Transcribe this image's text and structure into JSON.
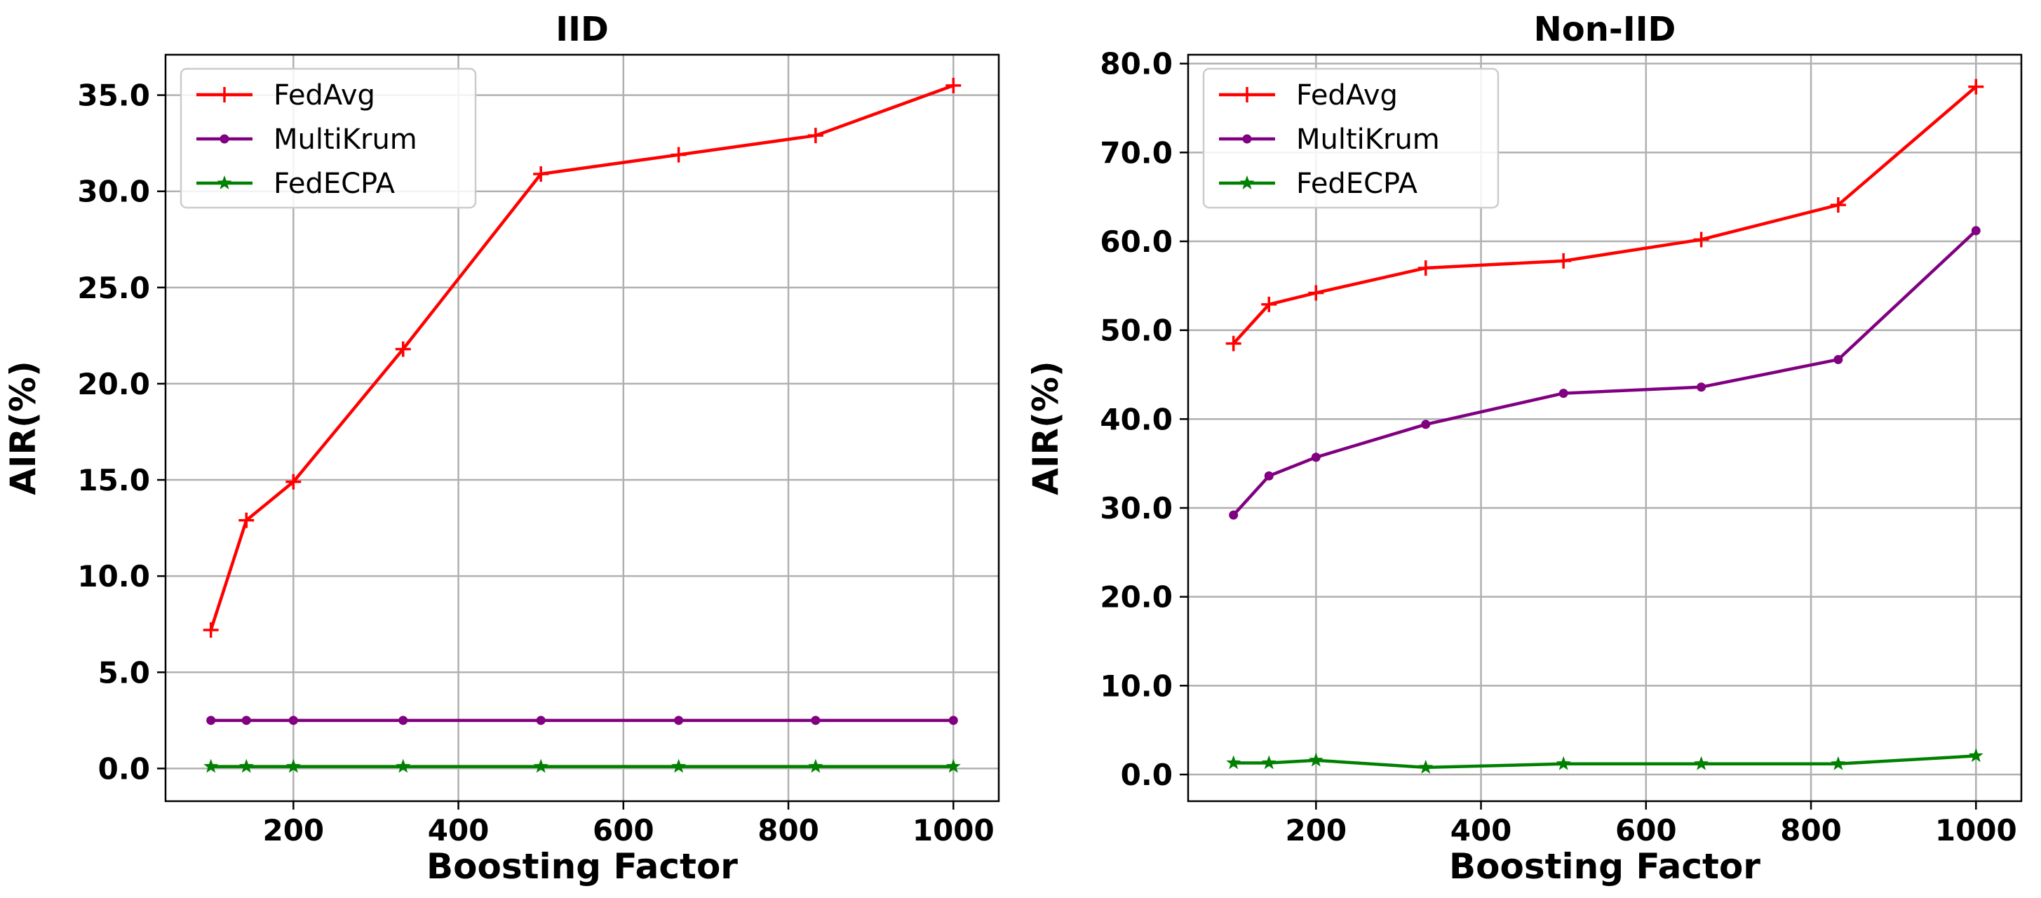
{
  "chart_data": [
    {
      "type": "line",
      "title": "IID",
      "xlabel": "Boosting Factor",
      "ylabel": "AIR(%)",
      "xlim": [
        45,
        1055
      ],
      "ylim": [
        -1.7,
        37.1
      ],
      "xticks": [
        200,
        400,
        600,
        800,
        1000
      ],
      "xtick_labels": [
        "200",
        "400",
        "600",
        "800",
        "1000"
      ],
      "yticks": [
        0,
        5,
        10,
        15,
        20,
        25,
        30,
        35
      ],
      "ytick_labels": [
        "0.0",
        "5.0",
        "10.0",
        "15.0",
        "20.0",
        "25.0",
        "30.0",
        "35.0"
      ],
      "grid": true,
      "legend_position": "top-left",
      "x": [
        100,
        143,
        200,
        333,
        500,
        667,
        833,
        1000
      ],
      "series": [
        {
          "name": "FedAvg",
          "color": "#ff0000",
          "marker": "plus",
          "values": [
            7.2,
            12.9,
            14.9,
            21.8,
            30.9,
            31.9,
            32.9,
            35.5
          ]
        },
        {
          "name": "MultiKrum",
          "color": "#800080",
          "marker": "dot",
          "values": [
            2.5,
            2.5,
            2.5,
            2.5,
            2.5,
            2.5,
            2.5,
            2.5
          ]
        },
        {
          "name": "FedECPA",
          "color": "#008000",
          "marker": "star",
          "values": [
            0.1,
            0.1,
            0.1,
            0.1,
            0.1,
            0.1,
            0.1,
            0.1
          ]
        }
      ]
    },
    {
      "type": "line",
      "title": "Non-IID",
      "xlabel": "Boosting Factor",
      "ylabel": "AIR(%)",
      "xlim": [
        45,
        1055
      ],
      "ylim": [
        -3.0,
        81.0
      ],
      "xticks": [
        200,
        400,
        600,
        800,
        1000
      ],
      "xtick_labels": [
        "200",
        "400",
        "600",
        "800",
        "1000"
      ],
      "yticks": [
        0,
        10,
        20,
        30,
        40,
        50,
        60,
        70,
        80
      ],
      "ytick_labels": [
        "0.0",
        "10.0",
        "20.0",
        "30.0",
        "40.0",
        "50.0",
        "60.0",
        "70.0",
        "80.0"
      ],
      "grid": true,
      "legend_position": "top-left",
      "x": [
        100,
        143,
        200,
        333,
        500,
        667,
        833,
        1000
      ],
      "series": [
        {
          "name": "FedAvg",
          "color": "#ff0000",
          "marker": "plus",
          "values": [
            48.5,
            52.9,
            54.2,
            57.0,
            57.8,
            60.2,
            64.1,
            77.4
          ]
        },
        {
          "name": "MultiKrum",
          "color": "#800080",
          "marker": "dot",
          "values": [
            29.2,
            33.6,
            35.7,
            39.4,
            42.9,
            43.6,
            46.7,
            61.2
          ]
        },
        {
          "name": "FedECPA",
          "color": "#008000",
          "marker": "star",
          "values": [
            1.3,
            1.3,
            1.6,
            0.8,
            1.2,
            1.2,
            1.2,
            2.1
          ]
        }
      ]
    }
  ]
}
